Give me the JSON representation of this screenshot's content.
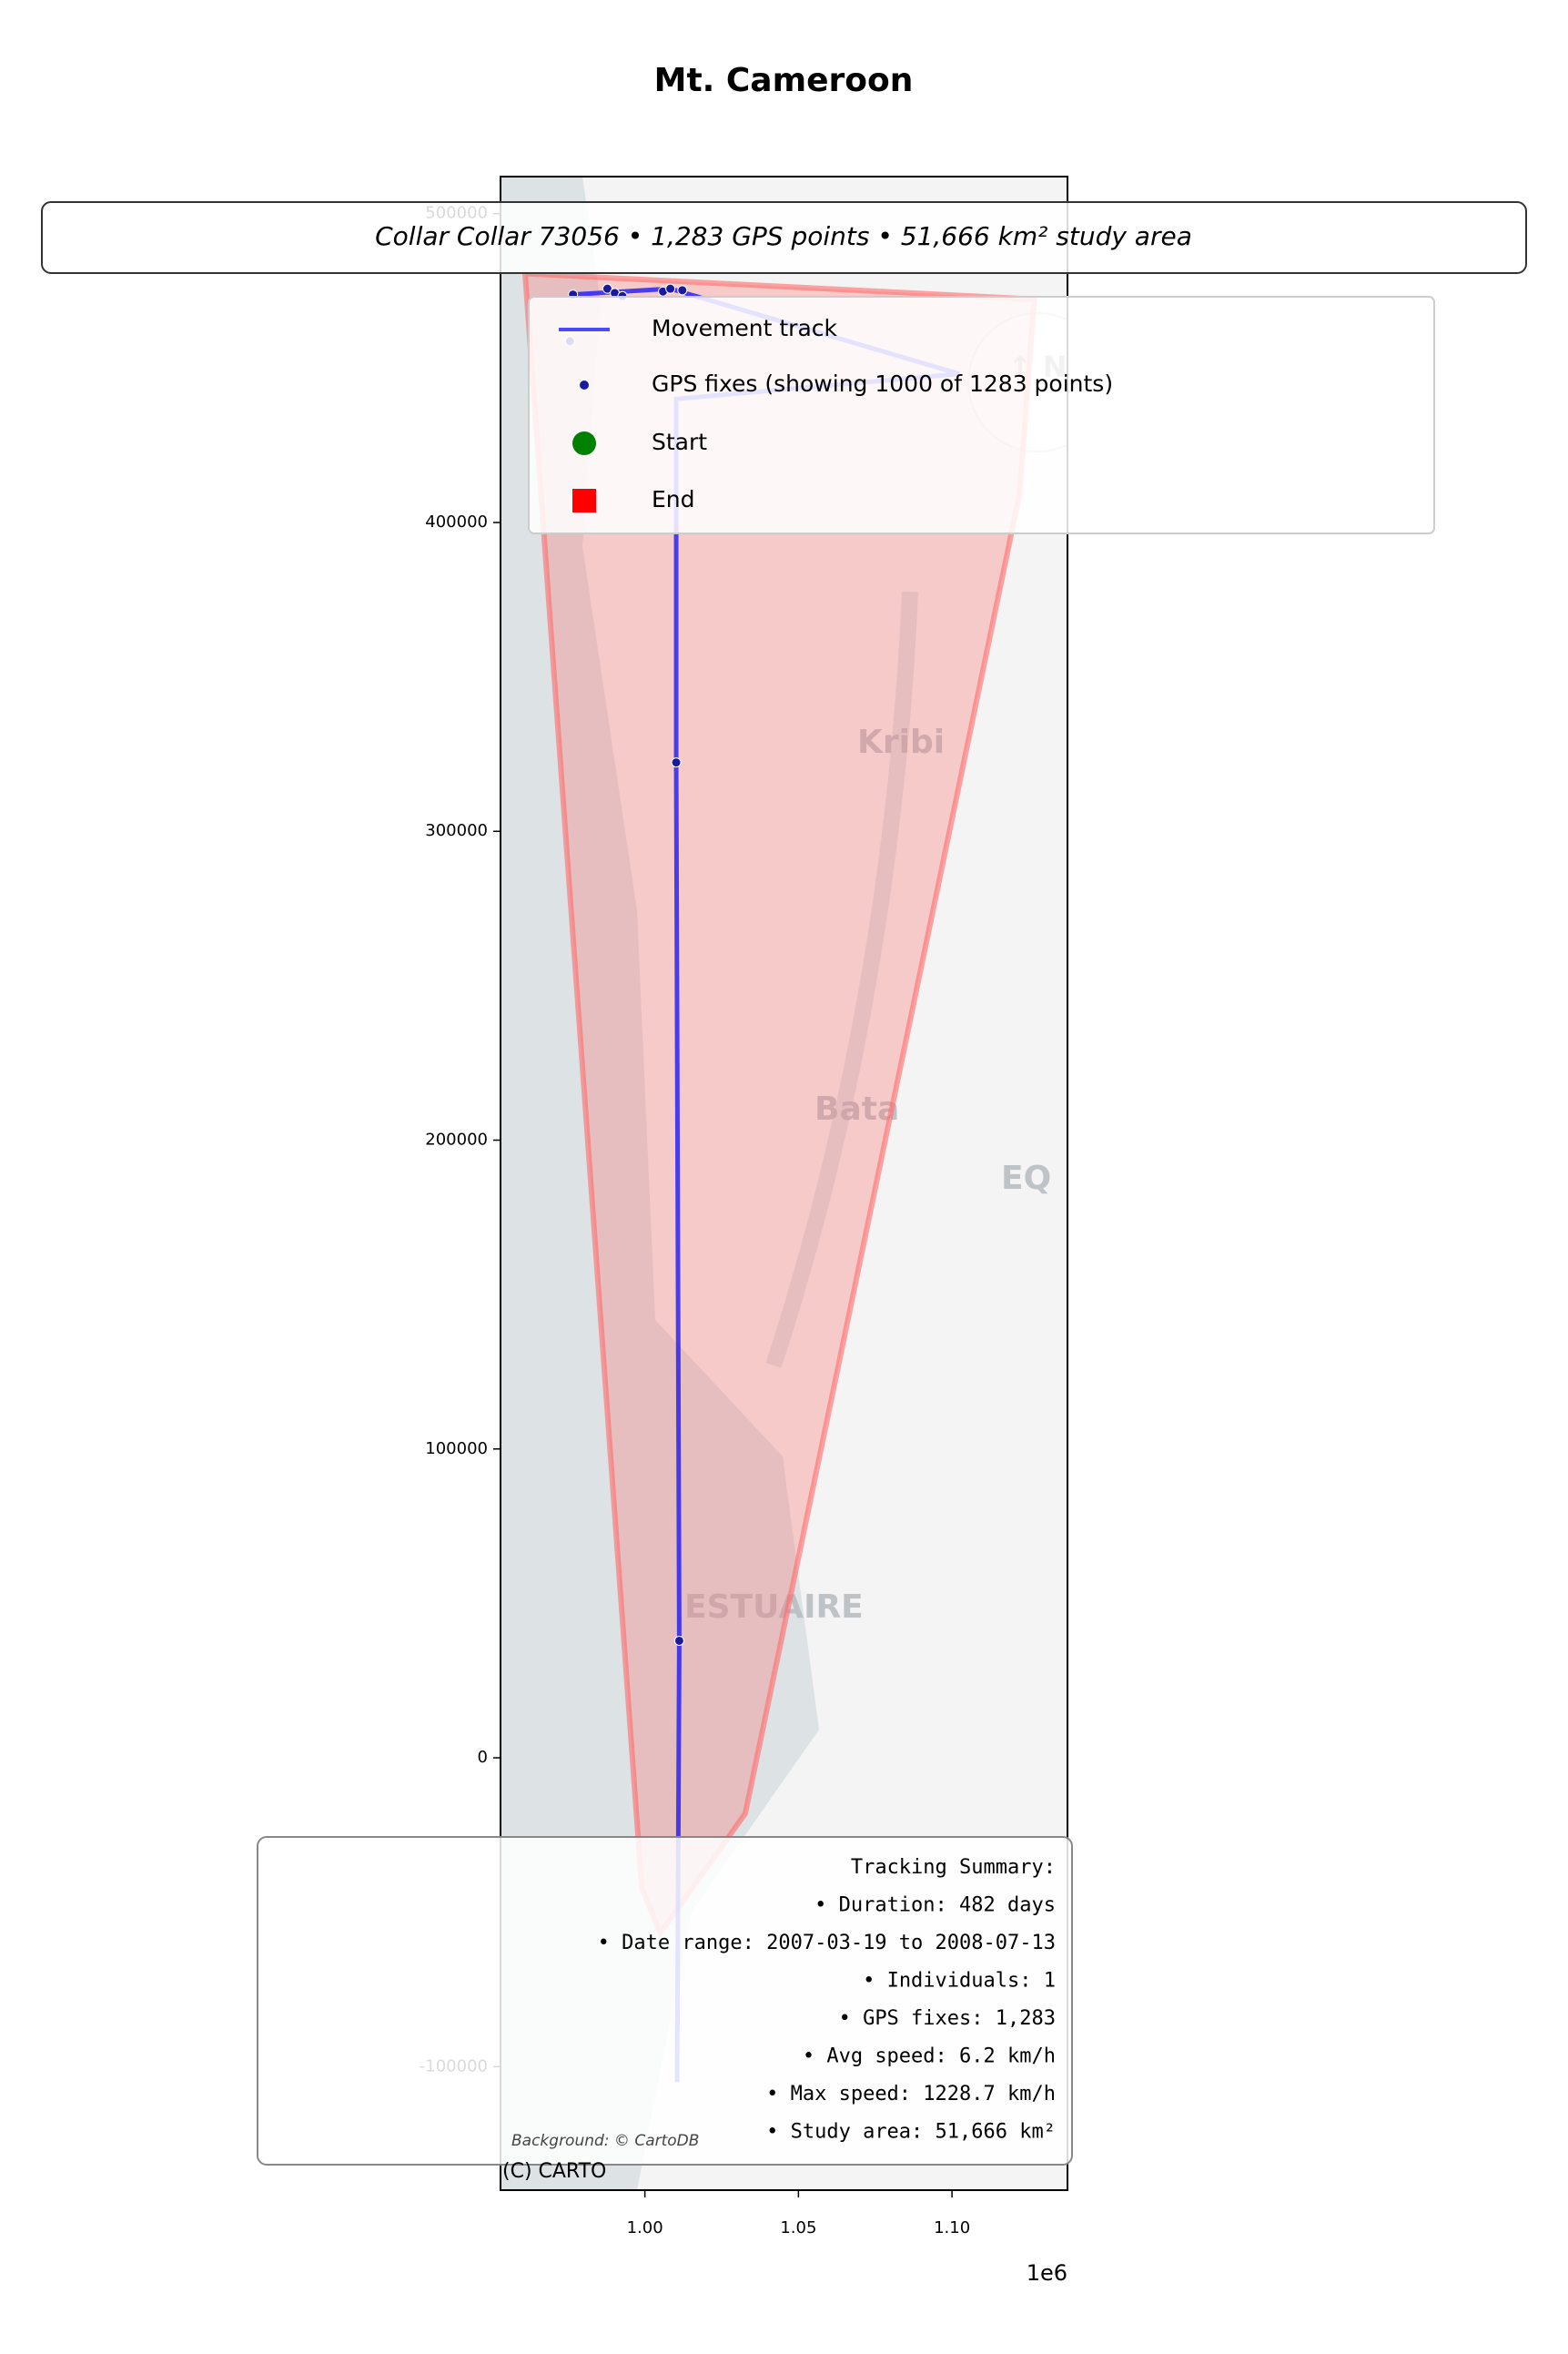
{
  "chart_data": {
    "type": "scatter",
    "title": "Mt. Cameroon",
    "annotation": "Collar Collar 73056 • 1,283 GPS points • 51,666 km² study area",
    "xlim": [
      953000,
      1137600
    ],
    "ylim": [
      -140000,
      512000
    ],
    "xticks": [
      {
        "value": 1000000,
        "label": "1.00"
      },
      {
        "value": 1050000,
        "label": "1.05"
      },
      {
        "value": 1100000,
        "label": "1.10"
      }
    ],
    "yticks": [
      -100000,
      0,
      100000,
      200000,
      300000,
      400000,
      500000
    ],
    "x_offset_label": "1e6",
    "study_area": {
      "color": "#ff6b6b",
      "x": [
        961000,
        1126800,
        1122000,
        1032700,
        1005000,
        999000
      ],
      "y": [
        480600,
        472300,
        409200,
        -18000,
        -56800,
        -42200
      ]
    },
    "series": [
      {
        "name": "Movement track",
        "color": "#0000ff",
        "x": [
          976600,
          1008300,
          1102400,
          1010200,
          1010200,
          1011200,
          1010500
        ],
        "y": [
          473800,
          475700,
          448100,
          440000,
          322300,
          37900,
          -105000
        ]
      },
      {
        "name": "GPS fixes (showing 1000 of 1283 points)",
        "color": "#1a1a9c",
        "x": [
          976600,
          987800,
          990200,
          992700,
          1005900,
          1008300,
          1012200,
          975600,
          1010200,
          1011200
        ],
        "y": [
          473800,
          475700,
          474300,
          473300,
          474800,
          475700,
          475200,
          458700,
          322300,
          37900
        ]
      },
      {
        "name": "Start",
        "color": "#008000"
      },
      {
        "name": "End",
        "color": "#ff0000"
      }
    ],
    "summary": [
      "Tracking Summary:",
      "• Duration: 482 days",
      "• Date range: 2007-03-19 to 2008-07-13",
      "• Individuals: 1",
      "• GPS fixes: 1,283",
      "• Avg speed: 6.2 km/h",
      "• Max speed: 1228.7 km/h",
      "• Study area: 51,666 km²"
    ],
    "basemap": {
      "labels": [
        "Kribi",
        "Bata",
        "ESTUAIRE",
        "EQ"
      ],
      "north_arrow": "↑ N",
      "attribution": "Background: © CartoDB",
      "credit": "(C) CARTO"
    }
  }
}
